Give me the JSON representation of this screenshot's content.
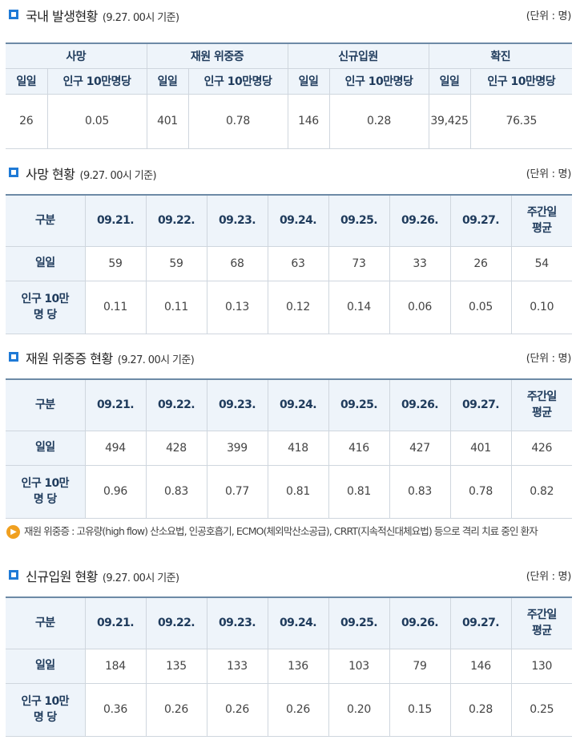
{
  "section1": {
    "title": "국내 발생현황",
    "subtitle": "(9.27. 00시 기준)",
    "unit": "(단위 : 명)",
    "groups": [
      "사망",
      "재원 위중증",
      "신규입원",
      "확진"
    ],
    "subheaders": [
      "일일",
      "인구 10만명당",
      "일일",
      "인구 10만명당",
      "일일",
      "인구 10만명당",
      "일일",
      "인구 10만명당"
    ],
    "values": [
      "26",
      "0.05",
      "401",
      "0.78",
      "146",
      "0.28",
      "39,425",
      "76.35"
    ]
  },
  "section2": {
    "title": "사망 현황",
    "subtitle": "(9.27. 00시 기준)",
    "unit": "(단위 : 명)",
    "header": [
      "구분",
      "09.21.",
      "09.22.",
      "09.23.",
      "09.24.",
      "09.25.",
      "09.26.",
      "09.27.",
      "주간일\n평균"
    ],
    "row1": {
      "label": "일일",
      "values": [
        "59",
        "59",
        "68",
        "63",
        "73",
        "33",
        "26",
        "54"
      ]
    },
    "row2": {
      "label": "인구 10만\n명 당",
      "values": [
        "0.11",
        "0.11",
        "0.13",
        "0.12",
        "0.14",
        "0.06",
        "0.05",
        "0.10"
      ]
    }
  },
  "section3": {
    "title": "재원 위중증 현황",
    "subtitle": "(9.27. 00시 기준)",
    "unit": "(단위 : 명)",
    "header": [
      "구분",
      "09.21.",
      "09.22.",
      "09.23.",
      "09.24.",
      "09.25.",
      "09.26.",
      "09.27.",
      "주간일\n평균"
    ],
    "row1": {
      "label": "일일",
      "values": [
        "494",
        "428",
        "399",
        "418",
        "416",
        "427",
        "401",
        "426"
      ]
    },
    "row2": {
      "label": "인구 10만\n명 당",
      "values": [
        "0.96",
        "0.83",
        "0.77",
        "0.81",
        "0.81",
        "0.83",
        "0.78",
        "0.82"
      ]
    }
  },
  "note": {
    "icon": "speaker-icon",
    "text": "재원 위중증 : 고유량(high flow) 산소요법, 인공호흡기, ECMO(체외막산소공급), CRRT(지속적신대체요법) 등으로 격리 치료 중인 환자"
  },
  "section4": {
    "title": "신규입원 현황",
    "subtitle": "(9.27. 00시 기준)",
    "unit": "(단위 : 명)",
    "header": [
      "구분",
      "09.21.",
      "09.22.",
      "09.23.",
      "09.24.",
      "09.25.",
      "09.26.",
      "09.27.",
      "주간일\n평균"
    ],
    "row1": {
      "label": "일일",
      "values": [
        "184",
        "135",
        "133",
        "136",
        "103",
        "79",
        "146",
        "130"
      ]
    },
    "row2": {
      "label": "인구 10만\n명 당",
      "values": [
        "0.36",
        "0.26",
        "0.26",
        "0.26",
        "0.20",
        "0.15",
        "0.28",
        "0.25"
      ]
    }
  },
  "colors": {
    "accent": "#1f7ad6",
    "header_bg": "#eef4fa",
    "header_text": "#1f3b5c",
    "note_icon": "#f0a020"
  }
}
